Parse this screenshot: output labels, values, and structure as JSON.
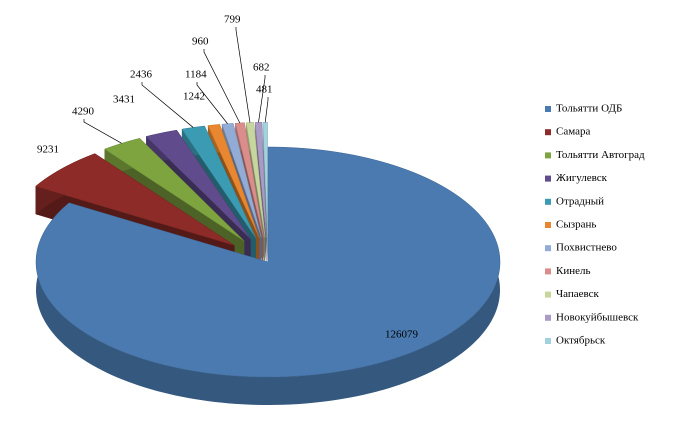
{
  "chart_data": {
    "type": "pie3d",
    "categories": [
      "Тольятти ОДБ",
      "Самара",
      "Тольятти Автоград",
      "Жигулевск",
      "Отрадный",
      "Сызрань",
      "Похвистнево",
      "Кинель",
      "Чапаевск",
      "Новокуйбышевск",
      "Октябрьск"
    ],
    "values": [
      126079,
      9231,
      4290,
      3431,
      2436,
      1242,
      1184,
      960,
      799,
      682,
      481
    ],
    "colors": [
      "#4a7ab0",
      "#8c2b27",
      "#7ea43f",
      "#604b8c",
      "#3b9bb2",
      "#e8872f",
      "#93acd6",
      "#da8d8a",
      "#c6d69c",
      "#aa9bc6",
      "#a2d2e0"
    ],
    "legend": "right"
  }
}
